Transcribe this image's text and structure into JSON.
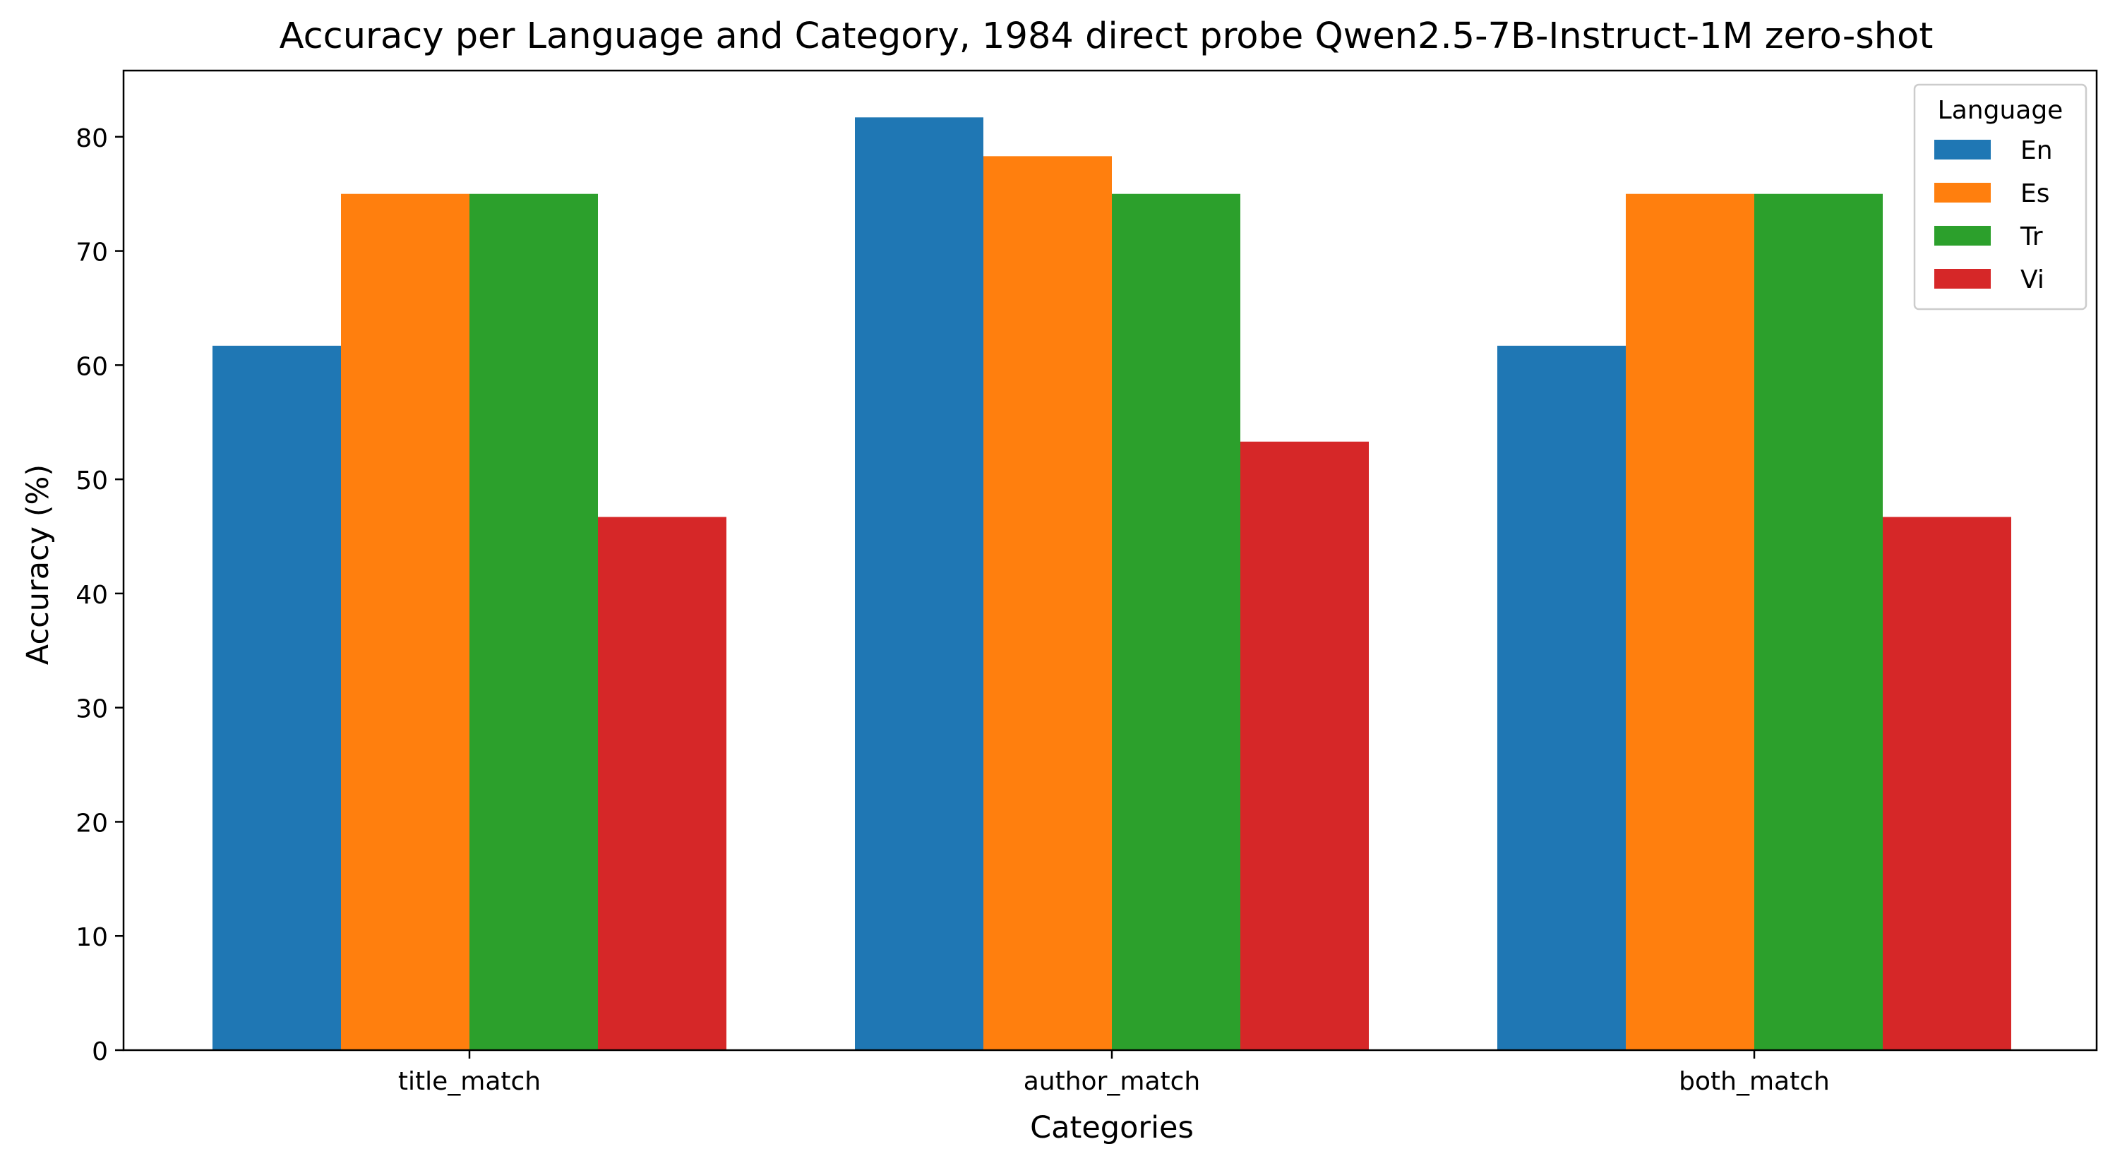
{
  "chart_data": {
    "type": "bar",
    "title": "Accuracy per Language and Category, 1984 direct probe Qwen2.5-7B-Instruct-1M zero-shot",
    "xlabel": "Categories",
    "ylabel": "Accuracy (%)",
    "categories": [
      "title_match",
      "author_match",
      "both_match"
    ],
    "series": [
      {
        "name": "En",
        "color": "#1f77b4",
        "values": [
          61.7,
          81.7,
          61.7
        ]
      },
      {
        "name": "Es",
        "color": "#ff7f0e",
        "values": [
          75.0,
          78.3,
          75.0
        ]
      },
      {
        "name": "Tr",
        "color": "#2ca02c",
        "values": [
          75.0,
          75.0,
          75.0
        ]
      },
      {
        "name": "Vi",
        "color": "#d62728",
        "values": [
          46.7,
          53.3,
          46.7
        ]
      }
    ],
    "ylim": [
      0,
      85.8
    ],
    "yticks": [
      0,
      10,
      20,
      30,
      40,
      50,
      60,
      70,
      80
    ],
    "grid": false,
    "legend": {
      "title": "Language",
      "placement": "top-right"
    }
  }
}
